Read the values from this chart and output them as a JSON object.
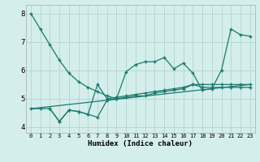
{
  "title": "",
  "xlabel": "Humidex (Indice chaleur)",
  "background_color": "#d4eeec",
  "grid_color": "#b8d8d5",
  "line_color": "#1a7a6e",
  "xlim": [
    -0.5,
    23.5
  ],
  "ylim": [
    3.8,
    8.3
  ],
  "yticks": [
    4,
    5,
    6,
    7,
    8
  ],
  "xticks": [
    0,
    1,
    2,
    3,
    4,
    5,
    6,
    7,
    8,
    9,
    10,
    11,
    12,
    13,
    14,
    15,
    16,
    17,
    18,
    19,
    20,
    21,
    22,
    23
  ],
  "series1_x": [
    0,
    1,
    2,
    3,
    4,
    5,
    6,
    7,
    8,
    9,
    10,
    11,
    12,
    13,
    14,
    15,
    16,
    17,
    18,
    19,
    20,
    21,
    22,
    23
  ],
  "series1_y": [
    8.0,
    7.45,
    6.9,
    6.35,
    5.9,
    5.6,
    5.4,
    5.25,
    5.1,
    5.0,
    5.95,
    6.2,
    6.3,
    6.3,
    6.45,
    6.05,
    6.25,
    5.9,
    5.3,
    5.35,
    6.0,
    7.45,
    7.25,
    7.2
  ],
  "series2_x": [
    0,
    1,
    2,
    3,
    4,
    5,
    6,
    7,
    8,
    9,
    10,
    11,
    12,
    13,
    14,
    15,
    16,
    17,
    18,
    19,
    20,
    21,
    22,
    23
  ],
  "series2_y": [
    4.65,
    4.65,
    4.65,
    4.2,
    4.6,
    4.55,
    4.45,
    4.35,
    4.95,
    5.0,
    5.05,
    5.1,
    5.1,
    5.2,
    5.25,
    5.3,
    5.35,
    5.5,
    5.4,
    5.4,
    5.4,
    5.4,
    5.4,
    5.4
  ],
  "series3_x": [
    2,
    3,
    4,
    5,
    6,
    7,
    8,
    9,
    10,
    11,
    12,
    13,
    14,
    15,
    16,
    17,
    18,
    19,
    20,
    21,
    22,
    23
  ],
  "series3_y": [
    4.65,
    4.2,
    4.6,
    4.55,
    4.45,
    5.5,
    5.0,
    5.05,
    5.1,
    5.15,
    5.2,
    5.25,
    5.3,
    5.35,
    5.4,
    5.5,
    5.5,
    5.5,
    5.5,
    5.5,
    5.5,
    5.5
  ],
  "series4_x": [
    0,
    23
  ],
  "series4_y": [
    4.65,
    5.5
  ]
}
